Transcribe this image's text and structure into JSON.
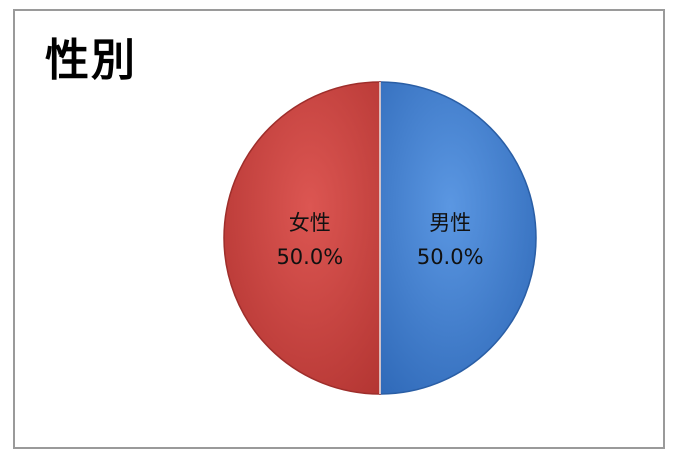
{
  "chart_data": {
    "type": "pie",
    "title": "性別",
    "slices": [
      {
        "label": "男性",
        "value": 50.0,
        "percent_label": "50.0%",
        "color": "#3f7fd4"
      },
      {
        "label": "女性",
        "value": 50.0,
        "percent_label": "50.0%",
        "color": "#cc4440"
      }
    ],
    "start_angle": "12 o'clock",
    "direction": "clockwise",
    "legend": "none"
  }
}
